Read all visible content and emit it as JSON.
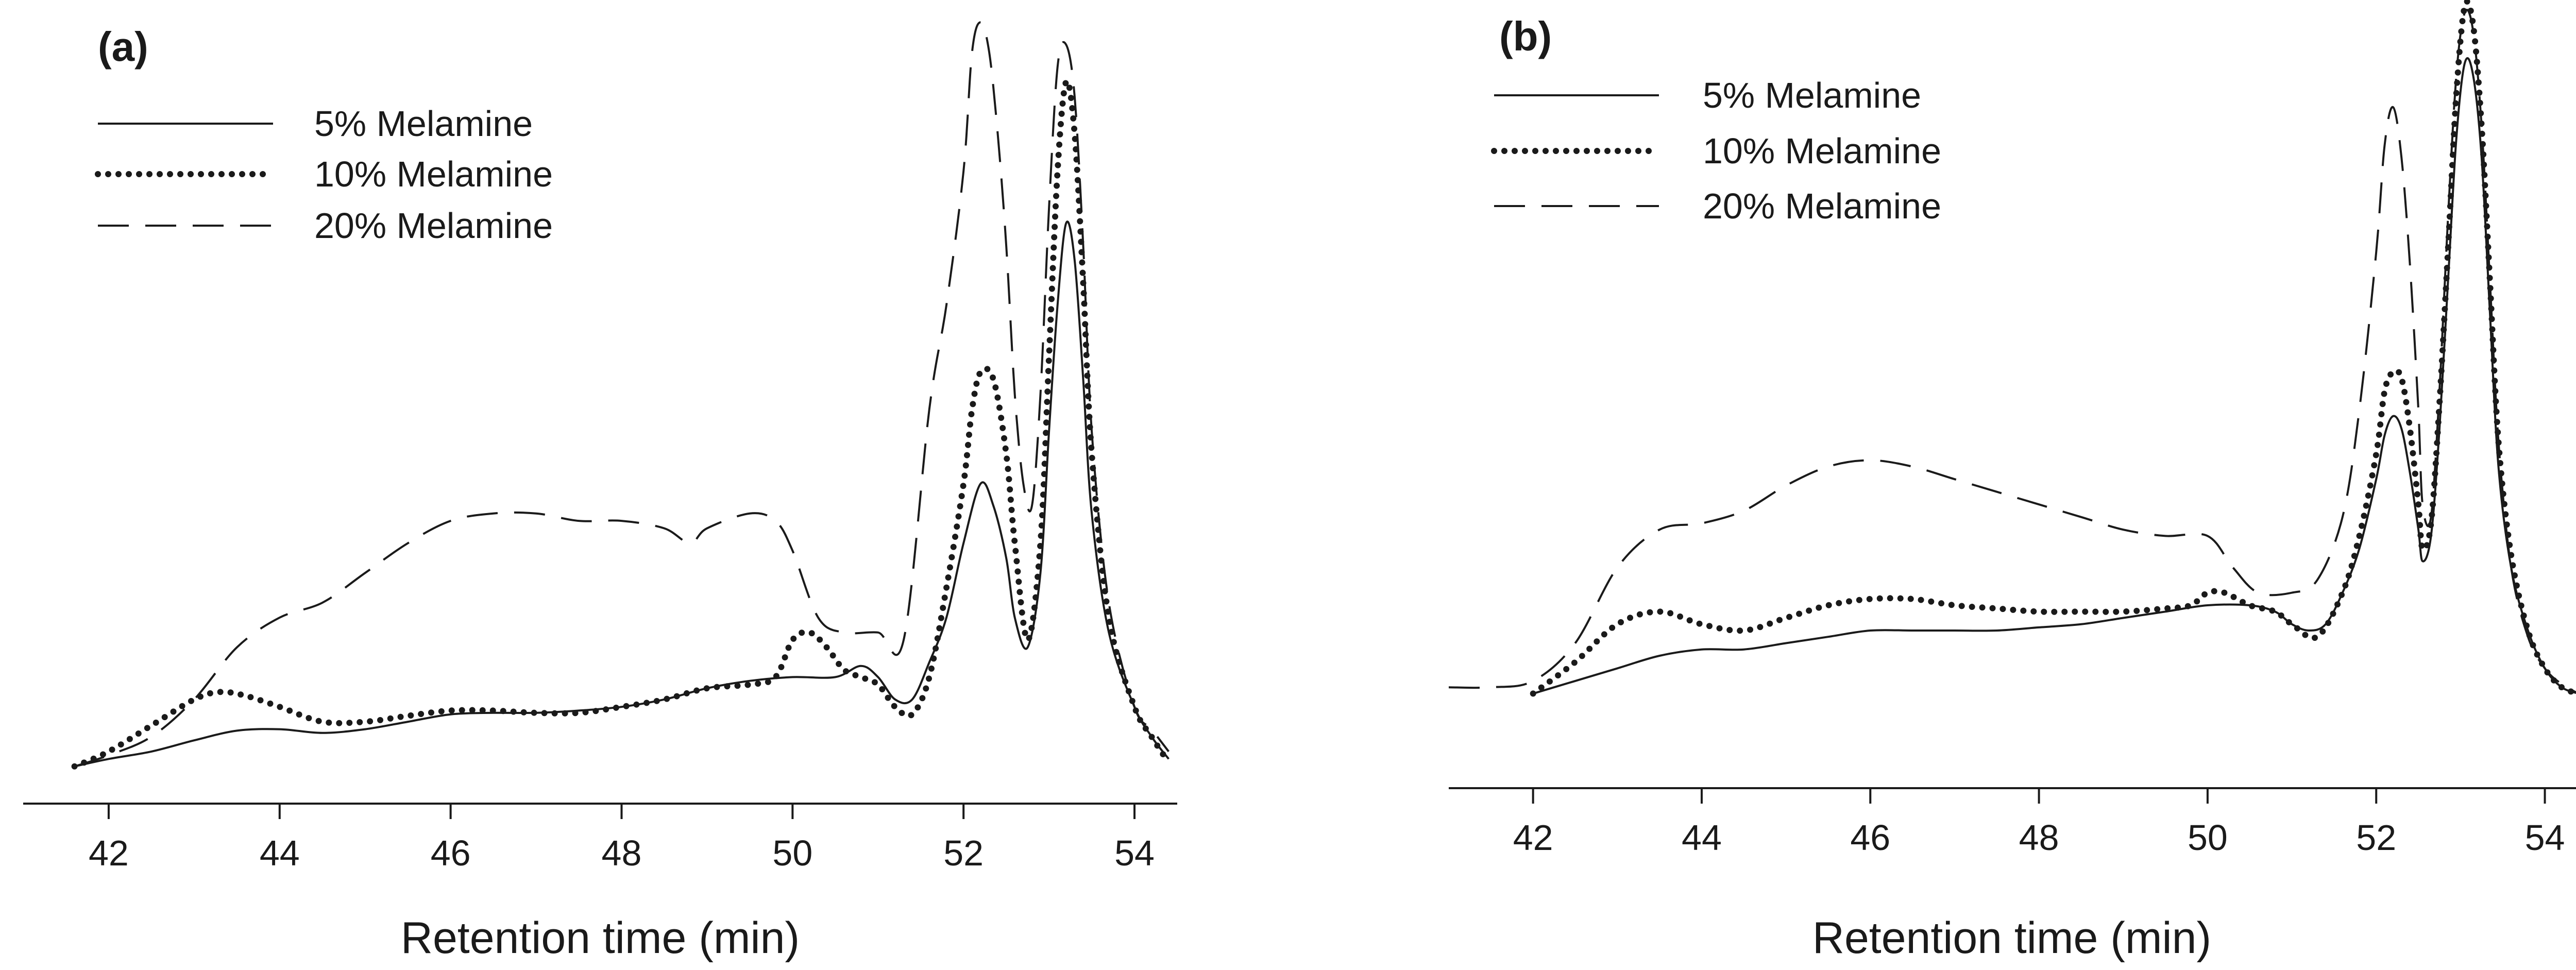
{
  "chart_data": [
    {
      "type": "line",
      "panel_label": "(a)",
      "xlabel": "Retention time (min)",
      "ylabel": "",
      "xlim": [
        41.0,
        54.5
      ],
      "ylim": [
        -0.5,
        10.3
      ],
      "xticks": [
        42,
        44,
        46,
        48,
        50,
        52,
        54
      ],
      "grid": false,
      "legend_position": "top-left",
      "series": [
        {
          "name": "5% Melamine",
          "style": "solid",
          "x": [
            41.6,
            42.0,
            42.5,
            43.0,
            43.5,
            44.0,
            44.5,
            45.0,
            45.5,
            46.0,
            46.5,
            47.0,
            47.5,
            48.0,
            48.5,
            49.0,
            49.5,
            50.0,
            50.5,
            50.8,
            51.0,
            51.2,
            51.4,
            51.6,
            51.8,
            52.0,
            52.2,
            52.35,
            52.5,
            52.6,
            52.75,
            52.9,
            53.0,
            53.1,
            53.2,
            53.3,
            53.4,
            53.5,
            53.7,
            54.0,
            54.2,
            54.4
          ],
          "y": [
            0.0,
            0.1,
            0.2,
            0.35,
            0.48,
            0.5,
            0.45,
            0.5,
            0.6,
            0.7,
            0.72,
            0.72,
            0.75,
            0.8,
            0.9,
            1.05,
            1.15,
            1.2,
            1.2,
            1.35,
            1.2,
            0.9,
            0.9,
            1.4,
            2.0,
            3.0,
            3.8,
            3.5,
            2.8,
            2.0,
            1.6,
            2.6,
            4.5,
            6.2,
            7.3,
            6.8,
            5.2,
            3.4,
            1.8,
            0.8,
            0.4,
            0.1
          ]
        },
        {
          "name": "10% Melamine",
          "style": "dotted",
          "x": [
            41.6,
            42.0,
            42.5,
            43.0,
            43.3,
            43.6,
            44.0,
            44.5,
            45.0,
            45.5,
            46.0,
            46.5,
            47.0,
            47.5,
            48.0,
            48.5,
            49.0,
            49.5,
            49.8,
            50.0,
            50.2,
            50.4,
            50.6,
            50.8,
            51.0,
            51.2,
            51.4,
            51.6,
            51.8,
            52.0,
            52.1,
            52.2,
            52.35,
            52.5,
            52.6,
            52.75,
            52.9,
            53.0,
            53.1,
            53.2,
            53.3,
            53.4,
            53.5,
            53.7,
            54.0,
            54.2,
            54.4
          ],
          "y": [
            0.0,
            0.2,
            0.55,
            0.9,
            1.0,
            0.95,
            0.8,
            0.6,
            0.6,
            0.68,
            0.75,
            0.75,
            0.72,
            0.72,
            0.8,
            0.9,
            1.05,
            1.1,
            1.2,
            1.7,
            1.8,
            1.6,
            1.3,
            1.2,
            1.1,
            0.8,
            0.7,
            1.2,
            2.4,
            3.8,
            4.8,
            5.3,
            5.2,
            4.2,
            3.0,
            1.7,
            3.0,
            5.5,
            8.0,
            9.2,
            8.5,
            6.5,
            4.2,
            2.0,
            0.8,
            0.4,
            0.05
          ]
        },
        {
          "name": "20% Melamine",
          "style": "dashed",
          "x": [
            41.6,
            42.0,
            42.5,
            43.0,
            43.5,
            44.0,
            44.5,
            45.0,
            45.5,
            46.0,
            46.5,
            47.0,
            47.5,
            48.0,
            48.5,
            48.8,
            49.0,
            49.5,
            49.8,
            50.0,
            50.3,
            50.6,
            51.0,
            51.3,
            51.6,
            51.8,
            52.0,
            52.1,
            52.2,
            52.3,
            52.4,
            52.5,
            52.6,
            52.7,
            52.8,
            52.9,
            53.0,
            53.1,
            53.2,
            53.3,
            53.4,
            53.5,
            53.7,
            54.0,
            54.2,
            54.4
          ],
          "y": [
            0.0,
            0.15,
            0.4,
            0.9,
            1.6,
            2.0,
            2.2,
            2.6,
            3.0,
            3.3,
            3.4,
            3.4,
            3.3,
            3.3,
            3.2,
            3.0,
            3.2,
            3.4,
            3.3,
            2.9,
            2.0,
            1.8,
            1.8,
            1.7,
            4.8,
            6.2,
            8.0,
            9.6,
            10.0,
            9.6,
            8.5,
            7.0,
            5.0,
            3.8,
            3.5,
            5.0,
            7.5,
            9.4,
            9.7,
            9.0,
            7.0,
            4.5,
            2.2,
            0.8,
            0.5,
            0.2
          ]
        }
      ]
    },
    {
      "type": "line",
      "panel_label": "(b)",
      "xlabel": "Retention time (min)",
      "ylabel": "",
      "xlim": [
        41.0,
        54.4
      ],
      "ylim": [
        -1.5,
        11.0
      ],
      "xticks": [
        42,
        44,
        46,
        48,
        50,
        52,
        54
      ],
      "grid": false,
      "legend_position": "top-left",
      "series": [
        {
          "name": "5% Melamine",
          "style": "solid",
          "x": [
            42.0,
            42.5,
            43.0,
            43.5,
            44.0,
            44.5,
            45.0,
            45.5,
            46.0,
            46.5,
            47.0,
            47.5,
            48.0,
            48.5,
            49.0,
            49.5,
            50.0,
            50.5,
            50.8,
            51.0,
            51.2,
            51.4,
            51.6,
            51.8,
            52.0,
            52.1,
            52.2,
            52.3,
            52.4,
            52.5,
            52.55,
            52.65,
            52.75,
            52.85,
            52.95,
            53.05,
            53.15,
            53.25,
            53.35,
            53.45,
            53.6,
            53.8,
            54.0,
            54.2,
            54.4
          ],
          "y": [
            0.0,
            0.2,
            0.4,
            0.6,
            0.7,
            0.7,
            0.8,
            0.9,
            1.0,
            1.0,
            1.0,
            1.0,
            1.05,
            1.1,
            1.2,
            1.3,
            1.4,
            1.4,
            1.3,
            1.1,
            1.0,
            1.1,
            1.6,
            2.3,
            3.4,
            4.1,
            4.4,
            4.2,
            3.5,
            2.6,
            2.1,
            2.5,
            4.2,
            6.5,
            8.8,
            10.0,
            9.8,
            8.5,
            6.0,
            3.6,
            2.0,
            1.0,
            0.4,
            0.1,
            0.0
          ]
        },
        {
          "name": "10% Melamine",
          "style": "dotted",
          "x": [
            42.0,
            42.5,
            43.0,
            43.5,
            44.0,
            44.5,
            45.0,
            45.5,
            46.0,
            46.5,
            47.0,
            47.5,
            48.0,
            48.5,
            49.0,
            49.5,
            49.8,
            50.0,
            50.2,
            50.5,
            50.8,
            51.0,
            51.3,
            51.6,
            51.8,
            52.0,
            52.1,
            52.2,
            52.3,
            52.4,
            52.5,
            52.55,
            52.65,
            52.75,
            52.85,
            52.95,
            53.05,
            53.15,
            53.25,
            53.35,
            53.45,
            53.6,
            53.8,
            54.0,
            54.2,
            54.4
          ],
          "y": [
            0.0,
            0.5,
            1.1,
            1.3,
            1.1,
            1.0,
            1.2,
            1.4,
            1.5,
            1.5,
            1.4,
            1.35,
            1.3,
            1.3,
            1.3,
            1.35,
            1.4,
            1.6,
            1.6,
            1.4,
            1.3,
            1.1,
            0.9,
            1.6,
            2.5,
            3.8,
            4.8,
            5.1,
            5.0,
            4.2,
            3.0,
            2.3,
            2.7,
            4.6,
            7.0,
            9.5,
            10.9,
            10.6,
            9.0,
            6.5,
            4.0,
            2.2,
            1.0,
            0.4,
            0.1,
            0.0
          ]
        },
        {
          "name": "20% Melamine",
          "style": "dashed",
          "x": [
            41.0,
            41.5,
            42.0,
            42.5,
            43.0,
            43.5,
            44.0,
            44.5,
            45.0,
            45.5,
            46.0,
            46.5,
            47.0,
            47.5,
            48.0,
            48.5,
            49.0,
            49.5,
            50.0,
            50.3,
            50.6,
            51.0,
            51.3,
            51.6,
            51.8,
            52.0,
            52.1,
            52.2,
            52.3,
            52.4,
            52.5,
            52.55,
            52.65,
            52.75,
            52.85,
            52.95,
            53.05,
            53.15,
            53.25,
            53.35,
            53.45,
            53.6,
            53.8,
            54.0,
            54.2,
            54.4
          ],
          "y": [
            0.1,
            0.1,
            0.2,
            0.8,
            2.0,
            2.6,
            2.7,
            2.9,
            3.3,
            3.6,
            3.7,
            3.6,
            3.4,
            3.2,
            3.0,
            2.8,
            2.6,
            2.5,
            2.5,
            2.0,
            1.6,
            1.6,
            1.8,
            2.8,
            4.5,
            7.0,
            8.7,
            9.3,
            8.5,
            6.8,
            4.5,
            3.0,
            2.8,
            4.8,
            7.5,
            9.8,
            10.8,
            10.5,
            9.0,
            6.5,
            4.0,
            2.0,
            0.9,
            0.4,
            0.15,
            0.0
          ]
        }
      ]
    }
  ]
}
